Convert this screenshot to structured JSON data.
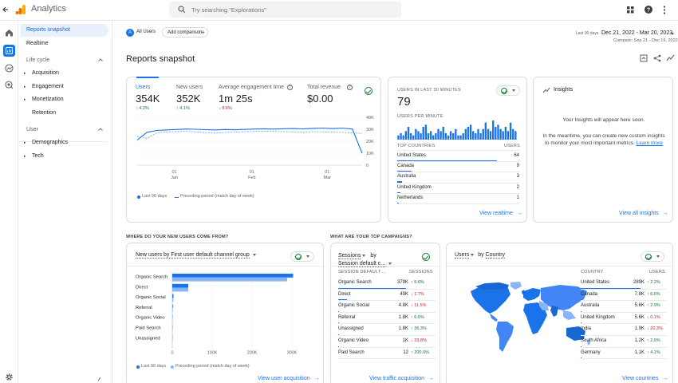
{
  "app": {
    "title": "Analytics"
  },
  "search": {
    "placeholder": "Try searching \"Explorations\""
  },
  "nav": {
    "snapshot": "Reports snapshot",
    "realtime": "Realtime",
    "lifecycle": "Life cycle",
    "lifecycle_items": [
      "Acquisition",
      "Engagement",
      "Monetization",
      "Retention"
    ],
    "user": "User",
    "user_items": [
      "Demographics",
      "Tech"
    ]
  },
  "filters": {
    "segment_letter": "A",
    "segment": "All Users",
    "add": "Add comparison"
  },
  "daterange": {
    "label": "Last 90 days",
    "value": "Dec 21, 2022 - Mar 20, 2023",
    "compare": "Compare: Sep 21 - Dec 19, 2022"
  },
  "page": {
    "title": "Reports snapshot"
  },
  "metrics": [
    {
      "label": "Users",
      "value": "354K",
      "change": "4.2%",
      "dir": "up"
    },
    {
      "label": "New users",
      "value": "352K",
      "change": "4.1%",
      "dir": "up"
    },
    {
      "label": "Average engagement time",
      "value": "1m 25s",
      "change": "8.6%",
      "dir": "down"
    },
    {
      "label": "Total revenue",
      "value": "$0.00",
      "change": "",
      "dir": ""
    }
  ],
  "chart_data": [
    {
      "type": "line",
      "x_ticks": [
        {
          "day": "01",
          "month": "Jan"
        },
        {
          "day": "01",
          "month": "Feb"
        },
        {
          "day": "01",
          "month": "Mar"
        }
      ],
      "y_ticks": [
        "40K",
        "30K",
        "20K",
        "10K",
        "0"
      ],
      "ylim": [
        0,
        40000
      ],
      "series": [
        {
          "name": "Last 90 days",
          "values": [
            21000,
            27500,
            29000,
            29500,
            29800,
            30200,
            30000,
            29700,
            29500,
            29800,
            29600,
            29900,
            30200,
            30400,
            30100,
            30500,
            30600,
            30300,
            30800,
            31000,
            30600,
            31000,
            30200,
            10000
          ]
        },
        {
          "name": "Preceding period (match day of week)",
          "values": [
            24000,
            22500,
            27000,
            27800,
            28000,
            28200,
            27800,
            27200,
            26800,
            27300,
            27700,
            28000,
            28100,
            28300,
            28200,
            28000,
            27900,
            27500,
            28000,
            27800,
            27600,
            27400,
            27000,
            26500
          ]
        }
      ]
    },
    {
      "type": "bar",
      "title": "Users per minute",
      "values": [
        2,
        3,
        2,
        4,
        6,
        3,
        2,
        5,
        4,
        3,
        6,
        7,
        3,
        4,
        2,
        3,
        5,
        4,
        6,
        3,
        2,
        4,
        3,
        5,
        2,
        2,
        3,
        5,
        6,
        7,
        4,
        3,
        5,
        3,
        5,
        8,
        5,
        4,
        9,
        6,
        7,
        5,
        4,
        6,
        4,
        8,
        5,
        4
      ]
    },
    {
      "type": "bar",
      "title": "New users by First user default channel group",
      "categories": [
        "Organic Search",
        "Direct",
        "Organic Social",
        "Referral",
        "Organic Video",
        "Paid Search",
        "Unassigned"
      ],
      "series": [
        {
          "name": "Last 90 days",
          "values": [
            303000,
            40000,
            3000,
            1500,
            400,
            100,
            50
          ]
        },
        {
          "name": "Preceding period (match day of week)",
          "values": [
            288000,
            40000,
            2600,
            1300,
            300,
            80,
            40
          ]
        }
      ],
      "x_ticks": [
        "0",
        "100K",
        "200K",
        "300K"
      ],
      "xlim": [
        0,
        310000
      ]
    }
  ],
  "realtime": {
    "title": "Users in last 30 minutes",
    "value": "79",
    "per_min_label": "Users per minute",
    "col_country": "Top countries",
    "col_users": "Users",
    "rows": [
      {
        "country": "United States",
        "users": "64",
        "frac": 1.0
      },
      {
        "country": "Canada",
        "users": "9",
        "frac": 0.14
      },
      {
        "country": "Australia",
        "users": "3",
        "frac": 0.05
      },
      {
        "country": "United Kingdom",
        "users": "2",
        "frac": 0.03
      },
      {
        "country": "Netherlands",
        "users": "1",
        "frac": 0.016
      }
    ],
    "link": "View realtime"
  },
  "insights": {
    "title": "Insights",
    "headline": "Your Insights will appear here soon.",
    "body": "In the meantime, you can create new custom insights to monitor your most important metrics.",
    "learn": "Learn more",
    "link": "View all insights"
  },
  "sections": {
    "new_users": "Where do your new users come from?",
    "campaigns": "What are your top campaigns?"
  },
  "acq": {
    "title": "New users by First user default channel group",
    "link": "View user acquisition"
  },
  "campaigns": {
    "title1": "Sessions",
    "by": "by",
    "title2": "Session default c...",
    "col1": "Session default ...",
    "col2": "Sessions",
    "rows": [
      {
        "name": "Organic Search",
        "value": "379K",
        "change": "5.6%",
        "dir": "up",
        "frac": 1.0
      },
      {
        "name": "Direct",
        "value": "49K",
        "change": "1.7%",
        "dir": "down",
        "frac": 0.13
      },
      {
        "name": "Organic Social",
        "value": "4.8K",
        "change": "11.5%",
        "dir": "down",
        "frac": 0.013
      },
      {
        "name": "Referral",
        "value": "1.8K",
        "change": "6.6%",
        "dir": "up",
        "frac": 0.005
      },
      {
        "name": "Unassigned",
        "value": "1.8K",
        "change": "36.3%",
        "dir": "up",
        "frac": 0.005
      },
      {
        "name": "Organic Video",
        "value": "1K",
        "change": "33.8%",
        "dir": "down",
        "frac": 0.003
      },
      {
        "name": "Paid Search",
        "value": "12",
        "change": "200.0%",
        "dir": "up",
        "frac": 0.0
      }
    ],
    "link": "View traffic acquisition"
  },
  "countries": {
    "title1": "Users",
    "by": "by",
    "title2": "Country",
    "col1": "Country",
    "col2": "Users",
    "rows": [
      {
        "name": "United States",
        "value": "289K",
        "change": "2.2%",
        "dir": "up",
        "frac": 1.0
      },
      {
        "name": "Canada",
        "value": "7.8K",
        "change": "6.6%",
        "dir": "up",
        "frac": 0.027
      },
      {
        "name": "Australia",
        "value": "5.6K",
        "change": "2.9%",
        "dir": "up",
        "frac": 0.019
      },
      {
        "name": "United Kingdom",
        "value": "5.6K",
        "change": "0.1%",
        "dir": "down",
        "frac": 0.019
      },
      {
        "name": "India",
        "value": "1.9K",
        "change": "20.3%",
        "dir": "down",
        "frac": 0.007
      },
      {
        "name": "South Africa",
        "value": "1.2K",
        "change": "2.5%",
        "dir": "up",
        "frac": 0.004
      },
      {
        "name": "Germany",
        "value": "1.1K",
        "change": "4.1%",
        "dir": "up",
        "frac": 0.004
      }
    ],
    "link": "View countries"
  },
  "colors": {
    "primary": "#1a73e8",
    "secondary": "#8ab4f8",
    "up": "#137333",
    "down": "#c5221f"
  }
}
